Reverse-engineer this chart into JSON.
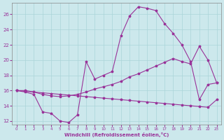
{
  "xlabel": "Windchill (Refroidissement éolien,°C)",
  "bg_color": "#cce8ec",
  "line_color": "#993399",
  "grid_color": "#aad4d8",
  "xlim": [
    -0.5,
    23.5
  ],
  "ylim": [
    11.5,
    27.5
  ],
  "yticks": [
    12,
    14,
    16,
    18,
    20,
    22,
    24,
    26
  ],
  "xticks": [
    0,
    1,
    2,
    3,
    4,
    5,
    6,
    7,
    8,
    9,
    10,
    11,
    12,
    13,
    14,
    15,
    16,
    17,
    18,
    19,
    20,
    21,
    22,
    23
  ],
  "line1_x": [
    0,
    1,
    2,
    3,
    4,
    5,
    6,
    7,
    8,
    9,
    10,
    11,
    12,
    13,
    14,
    15,
    16,
    17,
    18,
    19,
    20,
    21,
    22,
    23
  ],
  "line1_y": [
    16.0,
    15.9,
    15.8,
    15.7,
    15.6,
    15.5,
    15.4,
    15.3,
    15.2,
    15.1,
    15.0,
    14.9,
    14.8,
    14.7,
    14.6,
    14.5,
    14.4,
    14.3,
    14.2,
    14.1,
    14.0,
    13.9,
    13.8,
    14.8
  ],
  "line2_x": [
    0,
    1,
    2,
    3,
    4,
    5,
    6,
    7,
    8,
    9,
    10,
    11,
    12,
    13,
    14,
    15,
    16,
    17,
    18,
    19,
    20,
    21,
    22,
    23
  ],
  "line2_y": [
    16.0,
    16.0,
    15.8,
    15.5,
    15.3,
    15.2,
    15.3,
    15.5,
    15.8,
    16.2,
    16.5,
    16.8,
    17.2,
    17.8,
    18.2,
    18.7,
    19.2,
    19.7,
    20.2,
    19.8,
    19.5,
    21.8,
    20.0,
    17.0
  ],
  "line3_x": [
    0,
    1,
    2,
    3,
    4,
    5,
    6,
    7,
    8,
    9,
    10,
    11,
    12,
    13,
    14,
    15,
    16,
    17,
    18,
    19,
    20,
    21,
    22,
    23
  ],
  "line3_y": [
    16.0,
    15.8,
    15.5,
    13.2,
    13.0,
    12.0,
    11.8,
    12.8,
    19.8,
    17.5,
    18.0,
    18.5,
    23.2,
    25.8,
    27.0,
    26.8,
    26.5,
    24.8,
    23.5,
    22.0,
    19.8,
    14.8,
    16.8,
    17.0
  ]
}
